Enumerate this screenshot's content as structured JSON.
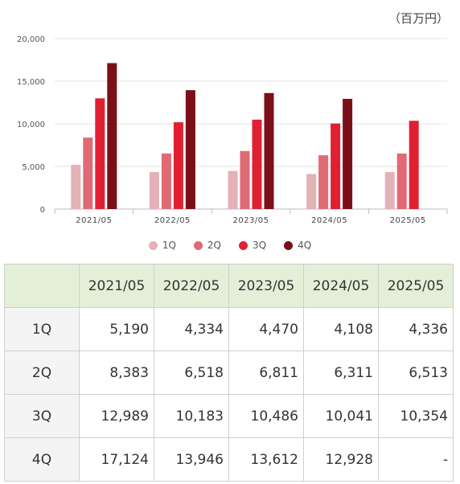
{
  "unit_label": "（百万円）",
  "colors": {
    "1Q": "#e4b1b6",
    "2Q": "#e06a74",
    "3Q": "#e02032",
    "4Q": "#7a0f18"
  },
  "chart_data": {
    "type": "bar",
    "categories": [
      "2021/05",
      "2022/05",
      "2023/05",
      "2024/05",
      "2025/05"
    ],
    "series": [
      {
        "name": "1Q",
        "values": [
          5190,
          4334,
          4470,
          4108,
          4336
        ]
      },
      {
        "name": "2Q",
        "values": [
          8383,
          6518,
          6811,
          6311,
          6513
        ]
      },
      {
        "name": "3Q",
        "values": [
          12989,
          10183,
          10486,
          10041,
          10354
        ]
      },
      {
        "name": "4Q",
        "values": [
          17124,
          13946,
          13612,
          12928,
          null
        ]
      }
    ],
    "ylim": [
      0,
      20000
    ],
    "yticks": [
      "0",
      "5,000",
      "10,000",
      "15,000",
      "20,000"
    ],
    "ytick_values": [
      0,
      5000,
      10000,
      15000,
      20000
    ],
    "grid": true,
    "legend_position": "bottom"
  },
  "table": {
    "headers": [
      "",
      "2021/05",
      "2022/05",
      "2023/05",
      "2024/05",
      "2025/05"
    ],
    "rows": [
      {
        "label": "1Q",
        "cells": [
          "5,190",
          "4,334",
          "4,470",
          "4,108",
          "4,336"
        ]
      },
      {
        "label": "2Q",
        "cells": [
          "8,383",
          "6,518",
          "6,811",
          "6,311",
          "6,513"
        ]
      },
      {
        "label": "3Q",
        "cells": [
          "12,989",
          "10,183",
          "10,486",
          "10,041",
          "10,354"
        ]
      },
      {
        "label": "4Q",
        "cells": [
          "17,124",
          "13,946",
          "13,612",
          "12,928",
          "-"
        ]
      }
    ]
  }
}
